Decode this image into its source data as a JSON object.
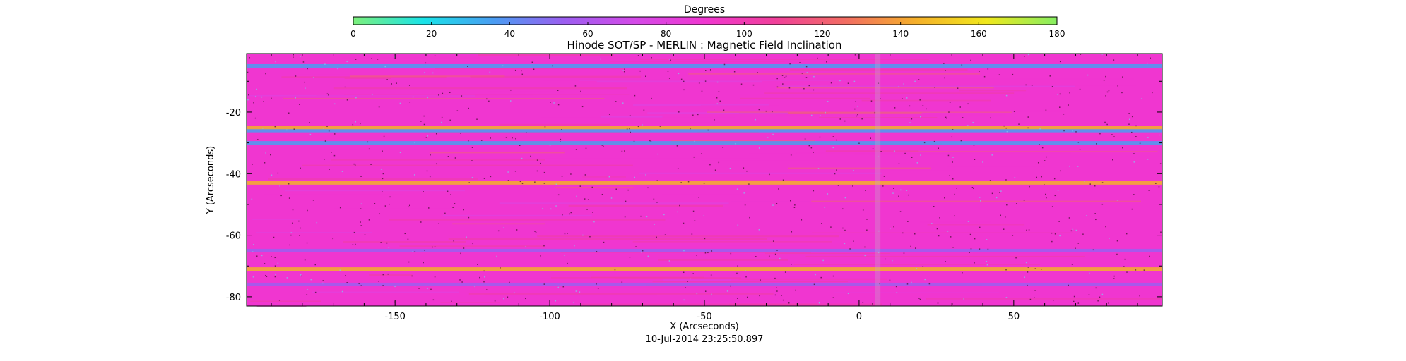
{
  "colorbar": {
    "label": "Degrees",
    "range": [
      0,
      180
    ],
    "ticks": [
      "0",
      "20",
      "40",
      "60",
      "80",
      "100",
      "120",
      "140",
      "160",
      "180"
    ],
    "colors": [
      "#7cf07c",
      "#19e3e8",
      "#4a9cf2",
      "#9c5ef0",
      "#d44ae8",
      "#f036d0",
      "#f0409a",
      "#f26d62",
      "#f5b02a",
      "#f0e81c",
      "#86ee62"
    ]
  },
  "title": "Hinode SOT/SP - MERLIN : Magnetic Field Inclination",
  "timestamp": "10-Jul-2014 23:25:50.897",
  "chart_data": {
    "type": "heatmap",
    "title": "Hinode SOT/SP - MERLIN : Magnetic Field Inclination",
    "xlabel": "X (Arcseconds)",
    "ylabel": "Y (Arcseconds)",
    "xlim": [
      -198,
      98
    ],
    "ylim": [
      -83,
      -1
    ],
    "x_ticks": [
      "-150",
      "-100",
      "-50",
      "0",
      "50"
    ],
    "y_ticks": [
      "-20",
      "-40",
      "-60",
      "-80"
    ],
    "x_tick_values": [
      -150,
      -100,
      -50,
      0,
      50
    ],
    "y_tick_values": [
      -20,
      -40,
      -60,
      -80
    ],
    "value_label": "Degrees",
    "value_range": [
      0,
      180
    ],
    "background_value": 95,
    "features": [
      {
        "kind": "horizontal streak",
        "y": -30,
        "value": 30
      },
      {
        "kind": "horizontal streak",
        "y": -26,
        "value": 35
      },
      {
        "kind": "horizontal streak",
        "y": -25,
        "value": 140
      },
      {
        "kind": "horizontal streak",
        "y": -5,
        "value": 40
      },
      {
        "kind": "horizontal streak",
        "y": -43,
        "value": 140
      },
      {
        "kind": "horizontal streak",
        "y": -65,
        "value": 55
      },
      {
        "kind": "horizontal streak",
        "y": -71,
        "value": 140
      },
      {
        "kind": "horizontal streak",
        "y": -76,
        "value": 60
      }
    ]
  }
}
